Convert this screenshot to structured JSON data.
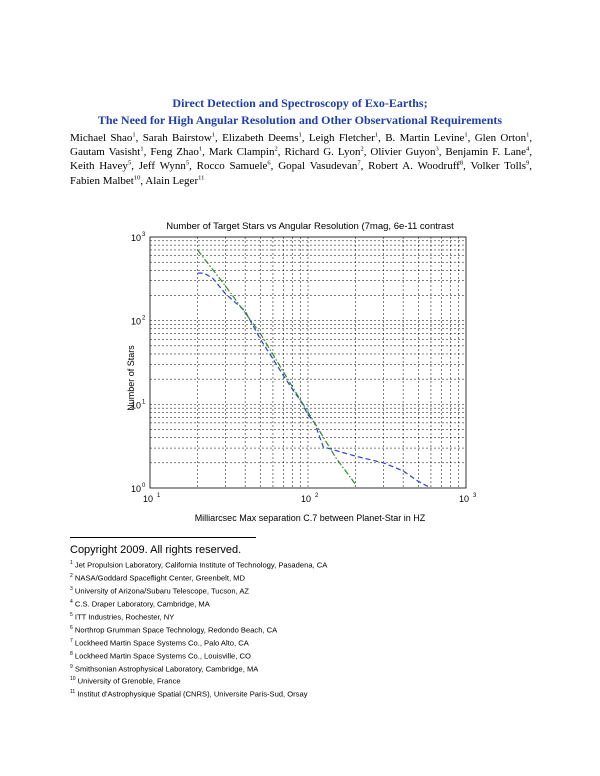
{
  "paper": {
    "title_line1": "Direct Detection and Spectroscopy of Exo-Earths;",
    "title_line2": "The Need for High Angular Resolution and Other Observational Requirements",
    "authors": [
      {
        "name": "Michael Shao",
        "aff": "1"
      },
      {
        "name": "Sarah Bairstow",
        "aff": "1"
      },
      {
        "name": "Elizabeth Deems",
        "aff": "1"
      },
      {
        "name": "Leigh Fletcher",
        "aff": "1"
      },
      {
        "name": "B. Martin Levine",
        "aff": "1"
      },
      {
        "name": "Glen Orton",
        "aff": "1"
      },
      {
        "name": "Gautam Vasisht",
        "aff": "1"
      },
      {
        "name": "Feng Zhao",
        "aff": "1"
      },
      {
        "name": "Mark Clampin",
        "aff": "2"
      },
      {
        "name": "Richard G. Lyon",
        "aff": "2"
      },
      {
        "name": "Olivier Guyon",
        "aff": "3"
      },
      {
        "name": "Benjamin F. Lane",
        "aff": "4"
      },
      {
        "name": "Keith Havey",
        "aff": "5"
      },
      {
        "name": "Jeff Wynn",
        "aff": "5"
      },
      {
        "name": "Rocco Samuele",
        "aff": "6"
      },
      {
        "name": "Gopal Vasudevan",
        "aff": "7"
      },
      {
        "name": "Robert A. Woodruff",
        "aff": "8"
      },
      {
        "name": "Volker Tolls",
        "aff": "9"
      },
      {
        "name": "Fabien Malbet",
        "aff": "10"
      },
      {
        "name": "Alain Leger",
        "aff": "11"
      }
    ],
    "copyright": "Copyright 2009.  All rights reserved.",
    "footnotes": [
      {
        "num": "1",
        "text": "Jet Propulsion Laboratory, California Institute of Technology, Pasadena, CA"
      },
      {
        "num": "2",
        "text": "NASA/Goddard Spaceflight Center, Greenbelt, MD"
      },
      {
        "num": "3",
        "text": "University of Arizona/Subaru Telescope, Tucson, AZ"
      },
      {
        "num": "4",
        "text": "C.S. Draper Laboratory, Cambridge, MA"
      },
      {
        "num": "5",
        "text": "ITT Industries, Rochester, NY"
      },
      {
        "num": "6",
        "text": "Northrop Grumman Space Technology, Redondo Beach, CA"
      },
      {
        "num": "7",
        "text": "Lockheed Martin Space Systems Co., Palo Alto, CA"
      },
      {
        "num": "8",
        "text": "Lockheed Martin Space Systems Co., Louisville, CO"
      },
      {
        "num": "9",
        "text": "Smithsonian Astrophysical Laboratory, Cambridge, MA"
      },
      {
        "num": "10",
        "text": "University of Grenoble, France"
      },
      {
        "num": "11",
        "text": "Institut d'Astrophysique Spatial (CNRS), Universite Paris-Sud, Orsay"
      }
    ]
  },
  "chart_data": {
    "type": "line",
    "title": "Number of Target Stars vs Angular Resolution (7mag, 6e-11 contrast",
    "xlabel": "Milliarcsec Max separation C.7 between Planet-Star in HZ",
    "ylabel": "Number of Stars",
    "xscale": "log",
    "yscale": "log",
    "xlim": [
      10,
      1000
    ],
    "ylim": [
      1,
      1000
    ],
    "x_ticks": [
      {
        "base": "10",
        "exp": "1"
      },
      {
        "base": "10",
        "exp": "2"
      },
      {
        "base": "10",
        "exp": "3"
      }
    ],
    "y_ticks": [
      {
        "base": "10",
        "exp": "0"
      },
      {
        "base": "10",
        "exp": "1"
      },
      {
        "base": "10",
        "exp": "2"
      },
      {
        "base": "10",
        "exp": "3"
      }
    ],
    "grid": true,
    "series": [
      {
        "style": "dashed",
        "color": "#2a3fd0",
        "x": [
          20,
          22,
          25,
          30,
          40,
          50,
          60,
          70,
          80,
          90,
          100,
          110,
          125,
          200,
          300,
          400,
          500,
          600
        ],
        "y": [
          370,
          370,
          320,
          210,
          130,
          60,
          35,
          22,
          15,
          11,
          7.5,
          6,
          3.1,
          2.4,
          2.0,
          1.6,
          1.2,
          1.0
        ]
      },
      {
        "style": "dash-dot",
        "color": "#2a8f2a",
        "x": [
          20,
          30,
          50,
          80,
          120,
          150,
          200
        ],
        "y": [
          700,
          260,
          70,
          16,
          4.6,
          2.3,
          1.1
        ]
      }
    ]
  }
}
